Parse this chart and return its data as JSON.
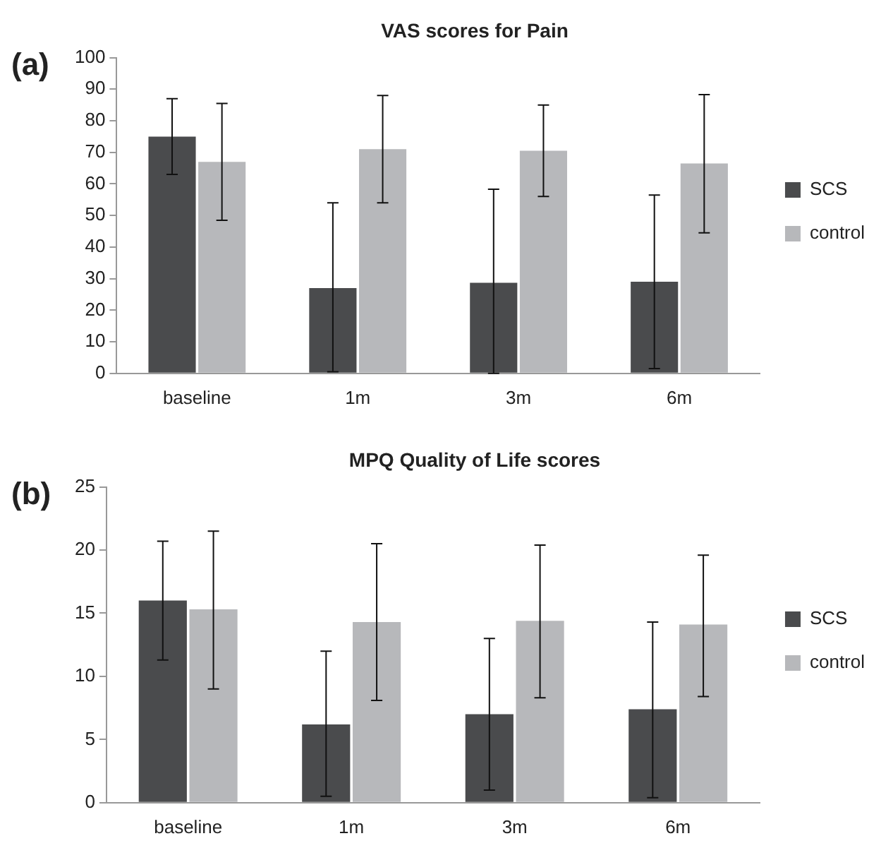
{
  "chart_data": [
    {
      "type": "bar",
      "title": "VAS scores for Pain",
      "annotations": [
        "(a)"
      ],
      "categories": [
        "baseline",
        "1m",
        "3m",
        "6m"
      ],
      "series": [
        {
          "name": "SCS",
          "color": "#4a4b4d",
          "values": [
            75,
            27,
            28.7,
            29
          ],
          "errors": [
            [
              63,
              87
            ],
            [
              0.5,
              54
            ],
            [
              0,
              58.3
            ],
            [
              1.5,
              56.5
            ]
          ]
        },
        {
          "name": "control",
          "color": "#b7b8bb",
          "values": [
            67,
            71,
            70.5,
            66.5
          ],
          "errors": [
            [
              48.5,
              85.5
            ],
            [
              54,
              88
            ],
            [
              56,
              85
            ],
            [
              44.5,
              88.3
            ]
          ]
        }
      ],
      "ylim": [
        0,
        100
      ],
      "yticks": [
        0,
        10,
        20,
        30,
        40,
        50,
        60,
        70,
        80,
        90,
        100
      ],
      "grid": false,
      "legend": "right"
    },
    {
      "type": "bar",
      "title": "MPQ Quality of Life scores",
      "annotations": [
        "(b)"
      ],
      "categories": [
        "baseline",
        "1m",
        "3m",
        "6m"
      ],
      "series": [
        {
          "name": "SCS",
          "color": "#4a4b4d",
          "values": [
            16,
            6.2,
            7,
            7.4
          ],
          "errors": [
            [
              11.3,
              20.7
            ],
            [
              0.5,
              12
            ],
            [
              1,
              13
            ],
            [
              0.4,
              14.3
            ]
          ]
        },
        {
          "name": "control",
          "color": "#b7b8bb",
          "values": [
            15.3,
            14.3,
            14.4,
            14.1
          ],
          "errors": [
            [
              9,
              21.5
            ],
            [
              8.1,
              20.5
            ],
            [
              8.3,
              20.4
            ],
            [
              8.4,
              19.6
            ]
          ]
        }
      ],
      "ylim": [
        0,
        25
      ],
      "yticks": [
        0,
        5,
        10,
        15,
        20,
        25
      ],
      "grid": false,
      "legend": "right"
    }
  ]
}
